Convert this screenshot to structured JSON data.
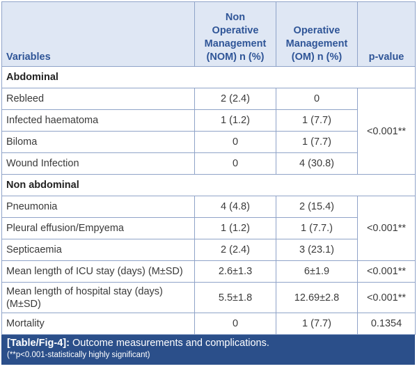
{
  "table": {
    "headers": {
      "variables": "Variables",
      "nom": [
        "Non",
        "Operative",
        "Management",
        "(NOM) n (%)"
      ],
      "om": [
        "Operative",
        "Management",
        "(OM) n (%)"
      ],
      "pvalue": "p-value"
    },
    "sections": {
      "abdominal": "Abdominal",
      "non_abdominal": "Non abdominal"
    },
    "rows": {
      "rebleed": {
        "label": "Rebleed",
        "nom": "2 (2.4)",
        "om": "0"
      },
      "infected_haematoma": {
        "label": "Infected haematoma",
        "nom": "1 (1.2)",
        "om": "1 (7.7)"
      },
      "biloma": {
        "label": "Biloma",
        "nom": "0",
        "om": "1 (7.7)"
      },
      "wound_infection": {
        "label": "Wound Infection",
        "nom": "0",
        "om": "4 (30.8)"
      },
      "pneumonia": {
        "label": "Pneumonia",
        "nom": "4 (4.8)",
        "om": "2 (15.4)"
      },
      "pleural_effusion": {
        "label": "Pleural effusion/Empyema",
        "nom": "1 (1.2)",
        "om": "1 (7.7.)"
      },
      "septicaemia": {
        "label": "Septicaemia",
        "nom": "2 (2.4)",
        "om": "3 (23.1)"
      },
      "icu_stay": {
        "label": "Mean length of ICU stay (days) (M±SD)",
        "nom": "2.6±1.3",
        "om": "6±1.9",
        "p": "<0.001**"
      },
      "hospital_stay": {
        "label_line1": "Mean length of hospital stay (days)",
        "label_line2": "(M±SD)",
        "nom": "5.5±1.8",
        "om": "12.69±2.8",
        "p": "<0.001**"
      },
      "mortality": {
        "label": "Mortality",
        "nom": "0",
        "om": "1 (7.7)",
        "p": "0.1354"
      }
    },
    "p_abdominal": "<0.001**",
    "p_non_abdominal": "<0.001**"
  },
  "caption": {
    "tag": "[Table/Fig-4]:",
    "title": " Outcome measurements and complications.",
    "note": "(**p<0.001-statistically highly significant)"
  }
}
